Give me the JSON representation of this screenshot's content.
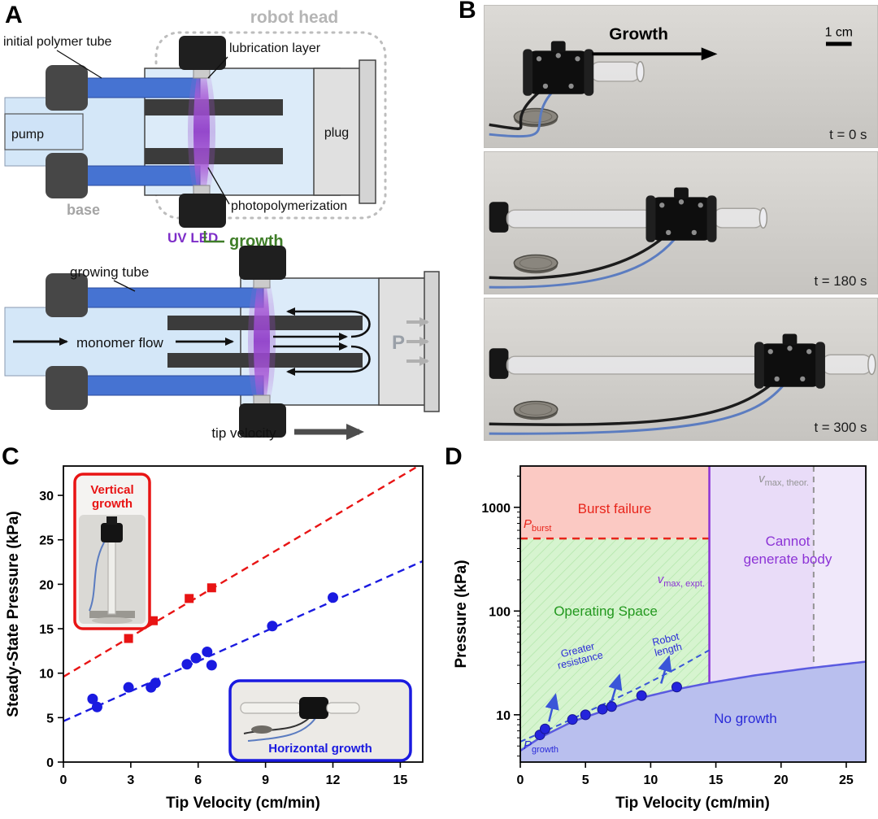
{
  "figure": {
    "panel_labels": {
      "a": "A",
      "b": "B",
      "c": "C",
      "d": "D"
    }
  },
  "panelA": {
    "robot_head": "robot head",
    "initial_polymer_tube": "initial polymer tube",
    "lubrication_layer": "lubrication layer",
    "pump": "pump",
    "plug": "plug",
    "base": "base",
    "uv_led": "UV LED",
    "photopolymerization": "photopolymerization",
    "growth": "growth",
    "growing_tube": "growing tube",
    "monomer_flow": "monomer flow",
    "pressure_symbol": "P",
    "tip_velocity": "tip velocity",
    "colors": {
      "uv_purple": "#9a4fd0",
      "growth_green": "#3f7d28",
      "tube_blue": "#4673d2",
      "monomer_blue": "#d4e7f8"
    }
  },
  "panelB": {
    "growth_arrow_label": "Growth",
    "scale_bar_label": "1 cm",
    "frames": [
      {
        "timestamp": "t = 0 s",
        "body_x": 52,
        "tail": false
      },
      {
        "timestamp": "t = 180 s",
        "body_x": 205,
        "tail": true
      },
      {
        "timestamp": "t = 300 s",
        "body_x": 340,
        "tail": true
      }
    ]
  },
  "panelC": {
    "inset_vertical_line1": "Vertical",
    "inset_vertical_line2": "growth",
    "inset_horizontal": "Horizontal growth"
  },
  "chart_data": [
    {
      "id": "panel-C",
      "type": "scatter",
      "xlabel": "Tip Velocity (cm/min)",
      "ylabel": "Steady-State Pressure (kPa)",
      "xlim": [
        0,
        16
      ],
      "ylim": [
        0,
        33.3
      ],
      "xticks": [
        0,
        3,
        6,
        9,
        12,
        15
      ],
      "yticks": [
        0,
        5,
        10,
        15,
        20,
        25,
        30
      ],
      "grid": false,
      "series": [
        {
          "name": "Vertical growth",
          "marker": "square",
          "color": "#e81414",
          "points": [
            [
              2.9,
              13.9
            ],
            [
              4.0,
              15.9
            ],
            [
              5.6,
              18.4
            ],
            [
              6.6,
              19.6
            ]
          ],
          "fit_line": {
            "style": "dashed",
            "x": [
              0,
              16
            ],
            "y": [
              9.6,
              33.6
            ]
          }
        },
        {
          "name": "Horizontal growth",
          "marker": "circle",
          "color": "#1a1ae0",
          "points": [
            [
              1.3,
              7.1
            ],
            [
              1.5,
              6.2
            ],
            [
              2.9,
              8.4
            ],
            [
              3.9,
              8.4
            ],
            [
              4.1,
              8.9
            ],
            [
              5.5,
              11.0
            ],
            [
              5.9,
              11.7
            ],
            [
              6.4,
              12.4
            ],
            [
              6.6,
              10.9
            ],
            [
              9.3,
              15.3
            ],
            [
              12.0,
              18.5
            ]
          ],
          "fit_line": {
            "style": "dashed",
            "x": [
              0,
              16
            ],
            "y": [
              4.6,
              22.6
            ]
          }
        }
      ]
    },
    {
      "id": "panel-D",
      "type": "area",
      "xlabel": "Tip Velocity (cm/min)",
      "ylabel": "Pressure (kPa)",
      "x_range": [
        0,
        26.5
      ],
      "y_range": [
        3.5,
        2500
      ],
      "y_scale": "log",
      "xticks": [
        0,
        5,
        10,
        15,
        20,
        25
      ],
      "yticks": [
        10,
        100,
        1000
      ],
      "p_burst_kpa": 500,
      "v_max_expt_cm_min": 14.5,
      "v_max_theor_cm_min": 22.5,
      "growth_curve": {
        "x": [
          0,
          1.5,
          4,
          7,
          9.3,
          12,
          14.5,
          18,
          22,
          26.5
        ],
        "y": [
          4.5,
          6.0,
          8.6,
          11.6,
          14.6,
          17.6,
          20.3,
          24,
          28,
          32.5
        ]
      },
      "resistance_curve": {
        "x": [
          0,
          3,
          6,
          9,
          12,
          14.5
        ],
        "y": [
          5.5,
          8,
          12,
          18,
          28,
          42
        ]
      },
      "measured_points": [
        [
          1.5,
          6.4
        ],
        [
          1.9,
          7.3
        ],
        [
          4.0,
          9.0
        ],
        [
          5.0,
          10.0
        ],
        [
          6.3,
          11.3
        ],
        [
          7.0,
          12.0
        ],
        [
          9.3,
          15.3
        ],
        [
          12.0,
          18.5
        ]
      ],
      "arrows": [
        {
          "x1": 2.2,
          "y1": 8.6,
          "x2": 2.7,
          "y2": 15.5
        },
        {
          "x1": 7.0,
          "y1": 13.4,
          "x2": 7.6,
          "y2": 24.0
        },
        {
          "x1": 10.8,
          "y1": 20.0,
          "x2": 11.4,
          "y2": 36.0
        }
      ],
      "regions": [
        {
          "name": "Burst failure",
          "fill": "#fbc9c3",
          "text_color": "#e8251b"
        },
        {
          "name": "Operating Space",
          "fill": "#d6f4cf",
          "text_color": "#22981e"
        },
        {
          "name": "Cannot generate body",
          "line1": "Cannot",
          "line2": "generate body",
          "fill": "#e9dcf8",
          "text_color": "#8c33d6"
        },
        {
          "name": "No growth",
          "fill": "#b9bfee",
          "text_color": "#2a2ad8"
        }
      ],
      "labels": {
        "p_burst_main": "P",
        "p_burst_sub": "burst",
        "p_growth_main": "P",
        "p_growth_sub": "growth",
        "v_max_theor_main": "v",
        "v_max_theor_sub": "max, theor.",
        "v_max_expt_main": "v",
        "v_max_expt_sub": "max, expt.",
        "greater_resistance_line1": "Greater",
        "greater_resistance_line2": "resistance",
        "robot_length_line1": "Robot",
        "robot_length_line2": "length"
      },
      "annotation_colors": {
        "red": "#e8251b",
        "green": "#22981e",
        "purple": "#8c33d6",
        "blue": "#2a2ad8",
        "gray": "#949494"
      }
    }
  ]
}
